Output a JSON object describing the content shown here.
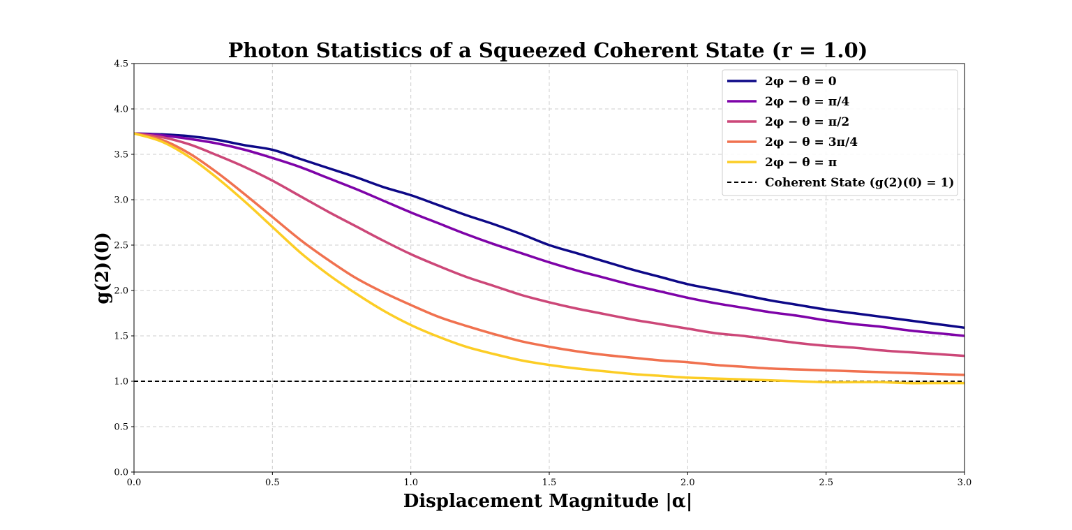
{
  "chart_data": {
    "type": "line",
    "title": "Photon Statistics of a Squeezed Coherent State (r = 1.0)",
    "xlabel": "Displacement Magnitude |α|",
    "ylabel": "g(2)(0)",
    "xlim": [
      0,
      3
    ],
    "ylim": [
      0,
      4.5
    ],
    "xticks": [
      "0.0",
      "0.5",
      "1.0",
      "1.5",
      "2.0",
      "2.5",
      "3.0"
    ],
    "yticks": [
      "0.0",
      "0.5",
      "1.0",
      "1.5",
      "2.0",
      "2.5",
      "3.0",
      "3.5",
      "4.0",
      "4.5"
    ],
    "grid": true,
    "legend_position": "top-right",
    "x": [
      0,
      0.1,
      0.2,
      0.3,
      0.4,
      0.5,
      0.6,
      0.7,
      0.8,
      0.9,
      1.0,
      1.1,
      1.2,
      1.3,
      1.4,
      1.5,
      1.6,
      1.7,
      1.8,
      1.9,
      2.0,
      2.1,
      2.2,
      2.3,
      2.4,
      2.5,
      2.6,
      2.7,
      2.8,
      2.9,
      3.0
    ],
    "series": [
      {
        "name": "2φ − θ = 0",
        "color": "#0d0887",
        "values": [
          3.73,
          3.72,
          3.7,
          3.66,
          3.6,
          3.55,
          3.45,
          3.35,
          3.25,
          3.14,
          3.05,
          2.94,
          2.83,
          2.73,
          2.62,
          2.5,
          2.41,
          2.32,
          2.23,
          2.15,
          2.07,
          2.01,
          1.95,
          1.89,
          1.84,
          1.79,
          1.75,
          1.71,
          1.67,
          1.63,
          1.59
        ]
      },
      {
        "name": "2φ − θ = π/4",
        "color": "#7e03a8",
        "values": [
          3.73,
          3.71,
          3.67,
          3.62,
          3.55,
          3.46,
          3.36,
          3.24,
          3.12,
          2.99,
          2.86,
          2.74,
          2.62,
          2.51,
          2.41,
          2.31,
          2.22,
          2.14,
          2.06,
          1.99,
          1.92,
          1.86,
          1.81,
          1.76,
          1.72,
          1.67,
          1.63,
          1.6,
          1.56,
          1.53,
          1.5
        ]
      },
      {
        "name": "2φ − θ = π/2",
        "color": "#cc4778",
        "values": [
          3.73,
          3.69,
          3.61,
          3.49,
          3.36,
          3.21,
          3.04,
          2.87,
          2.71,
          2.55,
          2.4,
          2.27,
          2.15,
          2.05,
          1.95,
          1.87,
          1.8,
          1.74,
          1.68,
          1.63,
          1.58,
          1.53,
          1.5,
          1.46,
          1.42,
          1.39,
          1.37,
          1.34,
          1.32,
          1.3,
          1.28
        ]
      },
      {
        "name": "2φ − θ = 3π/4",
        "color": "#f0714f",
        "values": [
          3.73,
          3.66,
          3.51,
          3.3,
          3.06,
          2.81,
          2.56,
          2.34,
          2.14,
          1.98,
          1.84,
          1.71,
          1.61,
          1.52,
          1.44,
          1.38,
          1.33,
          1.29,
          1.26,
          1.23,
          1.21,
          1.18,
          1.16,
          1.14,
          1.13,
          1.12,
          1.11,
          1.1,
          1.09,
          1.08,
          1.07
        ]
      },
      {
        "name": "2φ − θ = π",
        "color": "#fccd25",
        "values": [
          3.73,
          3.64,
          3.47,
          3.24,
          2.98,
          2.7,
          2.42,
          2.18,
          1.97,
          1.78,
          1.62,
          1.49,
          1.38,
          1.3,
          1.23,
          1.18,
          1.14,
          1.11,
          1.08,
          1.06,
          1.04,
          1.03,
          1.02,
          1.01,
          1.0,
          0.99,
          0.99,
          0.99,
          0.98,
          0.98,
          0.98
        ]
      }
    ],
    "reference_line": {
      "name": "Coherent State (g(2)(0) = 1)",
      "y": 1.0,
      "color": "#000000",
      "style": "dashed"
    }
  }
}
